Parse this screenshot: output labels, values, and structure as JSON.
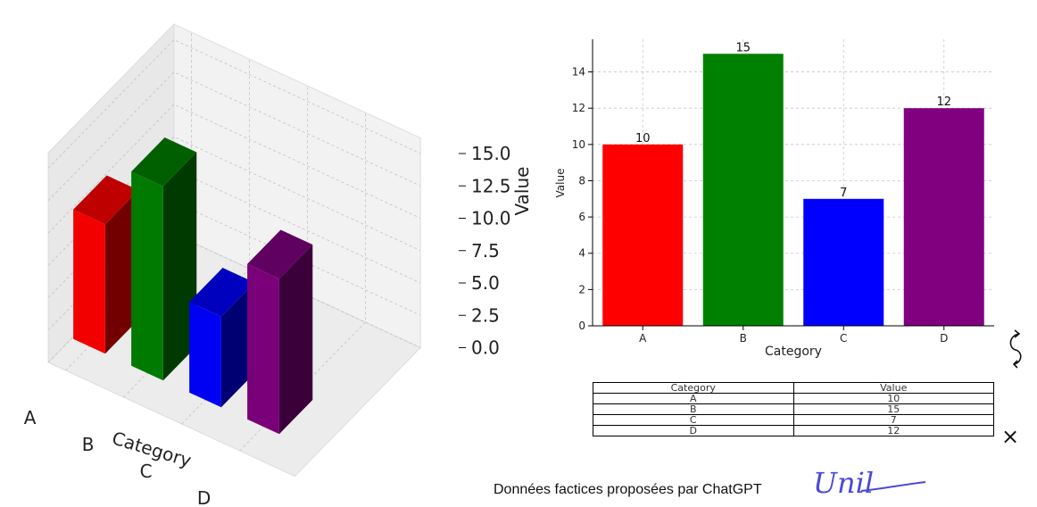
{
  "footer": {
    "note": "Données factices proposées par ChatGPT"
  },
  "logo": {
    "text": "Unil"
  },
  "icons": {
    "swap": "rotate-arrows-icon",
    "close": "close-x-icon"
  },
  "colors": {
    "accent_logo": "#4a4ad6"
  },
  "table": {
    "headers": [
      "Category",
      "Value"
    ],
    "rows": [
      [
        "A",
        "10"
      ],
      [
        "B",
        "15"
      ],
      [
        "C",
        "7"
      ],
      [
        "D",
        "12"
      ]
    ]
  },
  "chart_data": [
    {
      "type": "bar",
      "projection": "3d",
      "categories": [
        "A",
        "B",
        "C",
        "D"
      ],
      "values": [
        10,
        15,
        7,
        12
      ],
      "colors": [
        "#ff0000",
        "#008000",
        "#0000ff",
        "#800080"
      ],
      "title": "",
      "xlabel": "Category",
      "zlabel": "Value",
      "zlim": [
        0,
        15
      ],
      "zticks": [
        "0.0",
        "2.5",
        "5.0",
        "7.5",
        "10.0",
        "12.5",
        "15.0"
      ],
      "grid": true
    },
    {
      "type": "bar",
      "categories": [
        "A",
        "B",
        "C",
        "D"
      ],
      "values": [
        10,
        15,
        7,
        12
      ],
      "data_labels": [
        "10",
        "15",
        "7",
        "12"
      ],
      "colors": [
        "#ff0000",
        "#008000",
        "#0000ff",
        "#800080"
      ],
      "title": "",
      "xlabel": "Category",
      "ylabel": "Value",
      "ylim": [
        0,
        15.8
      ],
      "yticks": [
        "0",
        "2",
        "4",
        "6",
        "8",
        "10",
        "12",
        "14"
      ],
      "grid": true
    }
  ]
}
